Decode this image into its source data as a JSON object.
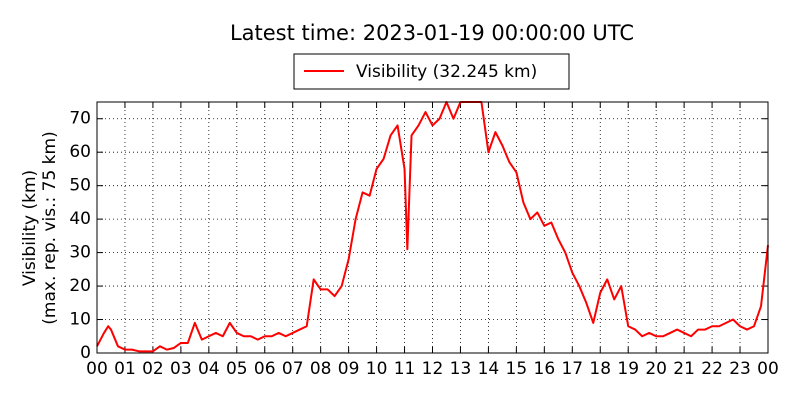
{
  "chart_data": {
    "type": "line",
    "title": "Latest time: 2023-01-19 00:00:00 UTC",
    "ylabel": [
      "Visibility (km)",
      "(max. rep. vis.: 75 km)"
    ],
    "x": [
      0,
      0.25,
      0.4,
      0.5,
      0.75,
      1,
      1.25,
      1.5,
      1.75,
      2,
      2.25,
      2.5,
      2.75,
      3,
      3.25,
      3.5,
      3.75,
      4,
      4.25,
      4.5,
      4.75,
      5,
      5.25,
      5.5,
      5.75,
      6,
      6.25,
      6.5,
      6.75,
      7,
      7.25,
      7.5,
      7.75,
      8,
      8.25,
      8.5,
      8.75,
      9,
      9.25,
      9.5,
      9.75,
      10,
      10.25,
      10.5,
      10.75,
      11,
      11.1,
      11.25,
      11.5,
      11.75,
      12,
      12.25,
      12.5,
      12.75,
      13,
      13.25,
      13.5,
      13.75,
      14,
      14.25,
      14.5,
      14.75,
      15,
      15.25,
      15.5,
      15.75,
      16,
      16.25,
      16.5,
      16.75,
      17,
      17.25,
      17.5,
      17.75,
      18,
      18.25,
      18.5,
      18.75,
      19,
      19.25,
      19.5,
      19.75,
      20,
      20.25,
      20.5,
      20.75,
      21,
      21.25,
      21.5,
      21.75,
      22,
      22.25,
      22.5,
      22.75,
      23,
      23.25,
      23.5,
      23.75,
      24
    ],
    "series": [
      {
        "name": "Visibility (32.245 km)",
        "color": "#ff0000",
        "values": [
          2,
          6,
          8,
          7,
          2,
          1,
          1,
          0.5,
          0.5,
          0.5,
          2,
          1,
          1.5,
          3,
          3,
          9,
          4,
          5,
          6,
          5,
          9,
          6,
          5,
          5,
          4,
          5,
          5,
          6,
          5,
          6,
          7,
          8,
          22,
          19,
          19,
          17,
          20,
          28,
          40,
          48,
          47,
          55,
          58,
          65,
          68,
          55,
          31,
          65,
          68,
          72,
          68,
          70,
          75,
          70,
          75,
          75,
          75,
          75,
          60,
          66,
          62,
          57,
          54,
          45,
          40,
          42,
          38,
          39,
          34,
          30,
          24,
          20,
          15,
          9,
          18,
          22,
          16,
          20,
          8,
          7,
          5,
          6,
          5,
          5,
          6,
          7,
          6,
          5,
          7,
          7,
          8,
          8,
          9,
          10,
          8,
          7,
          8,
          14,
          32.245
        ]
      }
    ],
    "xlim": [
      0,
      24
    ],
    "xticks": [
      {
        "value": 0,
        "label": "00"
      },
      {
        "value": 1,
        "label": "01"
      },
      {
        "value": 2,
        "label": "02"
      },
      {
        "value": 3,
        "label": "03"
      },
      {
        "value": 4,
        "label": "04"
      },
      {
        "value": 5,
        "label": "05"
      },
      {
        "value": 6,
        "label": "06"
      },
      {
        "value": 7,
        "label": "07"
      },
      {
        "value": 8,
        "label": "08"
      },
      {
        "value": 9,
        "label": "09"
      },
      {
        "value": 10,
        "label": "10"
      },
      {
        "value": 11,
        "label": "11"
      },
      {
        "value": 12,
        "label": "12"
      },
      {
        "value": 13,
        "label": "13"
      },
      {
        "value": 14,
        "label": "14"
      },
      {
        "value": 15,
        "label": "15"
      },
      {
        "value": 16,
        "label": "16"
      },
      {
        "value": 17,
        "label": "17"
      },
      {
        "value": 18,
        "label": "18"
      },
      {
        "value": 19,
        "label": "19"
      },
      {
        "value": 20,
        "label": "20"
      },
      {
        "value": 21,
        "label": "21"
      },
      {
        "value": 22,
        "label": "22"
      },
      {
        "value": 23,
        "label": "23"
      },
      {
        "value": 24,
        "label": "00"
      }
    ],
    "ylim": [
      0,
      75
    ],
    "yticks": [
      0,
      10,
      20,
      30,
      40,
      50,
      60,
      70
    ],
    "grid": true
  }
}
